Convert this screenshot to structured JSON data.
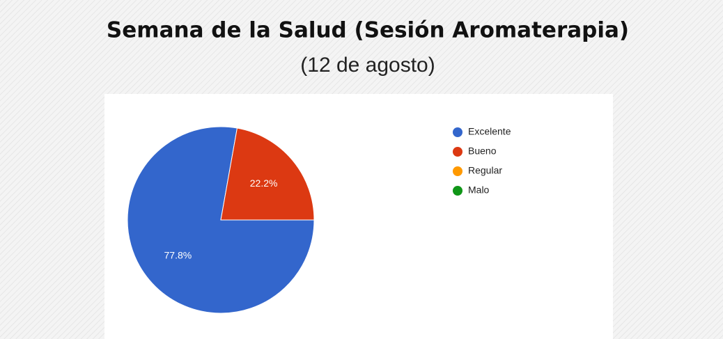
{
  "chart_data": {
    "type": "pie",
    "title": "Semana de la Salud (Sesión Aromaterapia)",
    "subtitle": "(12 de agosto)",
    "categories": [
      "Excelente",
      "Bueno",
      "Regular",
      "Malo"
    ],
    "values": [
      77.8,
      22.2,
      0,
      0
    ],
    "value_labels": [
      "77.8%",
      "22.2%",
      null,
      null
    ],
    "colors": [
      "#3366cc",
      "#dc3912",
      "#ff9900",
      "#109618"
    ],
    "legend": "right"
  }
}
